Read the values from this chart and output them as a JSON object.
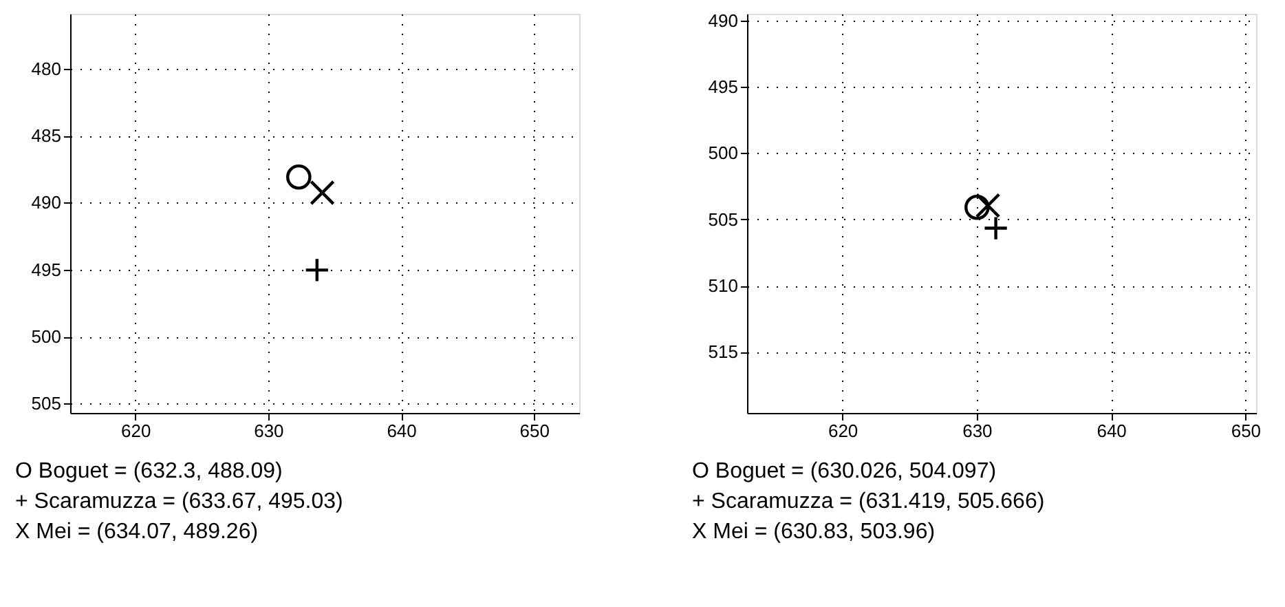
{
  "chart_data": [
    {
      "type": "scatter",
      "xlim": [
        615.1,
        653.4
      ],
      "ylim": [
        505.7,
        475.9
      ],
      "xticks": [
        620,
        630,
        640,
        650
      ],
      "yticks": [
        480,
        485,
        490,
        495,
        500,
        505
      ],
      "grid": true,
      "series": [
        {
          "color": "#000000",
          "marker": "circle",
          "x": [
            632.3
          ],
          "values": [
            488.09
          ]
        },
        {
          "color": "#000000",
          "marker": "plus",
          "x": [
            633.67
          ],
          "values": [
            495.03
          ]
        },
        {
          "color": "#000000",
          "marker": "cross",
          "x": [
            634.07
          ],
          "values": [
            489.26
          ]
        }
      ],
      "annotations": [
        "O Boguet       = (632.3, 488.09)",
        "+ Scaramuzza = (633.67, 495.03)",
        "X Mei             = (634.07, 489.26)"
      ]
    },
    {
      "type": "scatter",
      "xlim": [
        612.9,
        650.8
      ],
      "ylim": [
        519.6,
        489.5
      ],
      "xticks": [
        620,
        630,
        640,
        650
      ],
      "yticks": [
        490,
        495,
        500,
        505,
        510,
        515
      ],
      "grid": true,
      "series": [
        {
          "color": "#000000",
          "marker": "circle",
          "x": [
            630.026
          ],
          "values": [
            504.097
          ]
        },
        {
          "color": "#000000",
          "marker": "plus",
          "x": [
            631.419
          ],
          "values": [
            505.666
          ]
        },
        {
          "color": "#000000",
          "marker": "cross",
          "x": [
            630.83
          ],
          "values": [
            503.96
          ]
        }
      ],
      "annotations": [
        "O Boguet       = (630.026, 504.097)",
        "+ Scaramuzza = (631.419, 505.666)",
        "X Mei             = (630.83, 503.96)"
      ]
    }
  ]
}
